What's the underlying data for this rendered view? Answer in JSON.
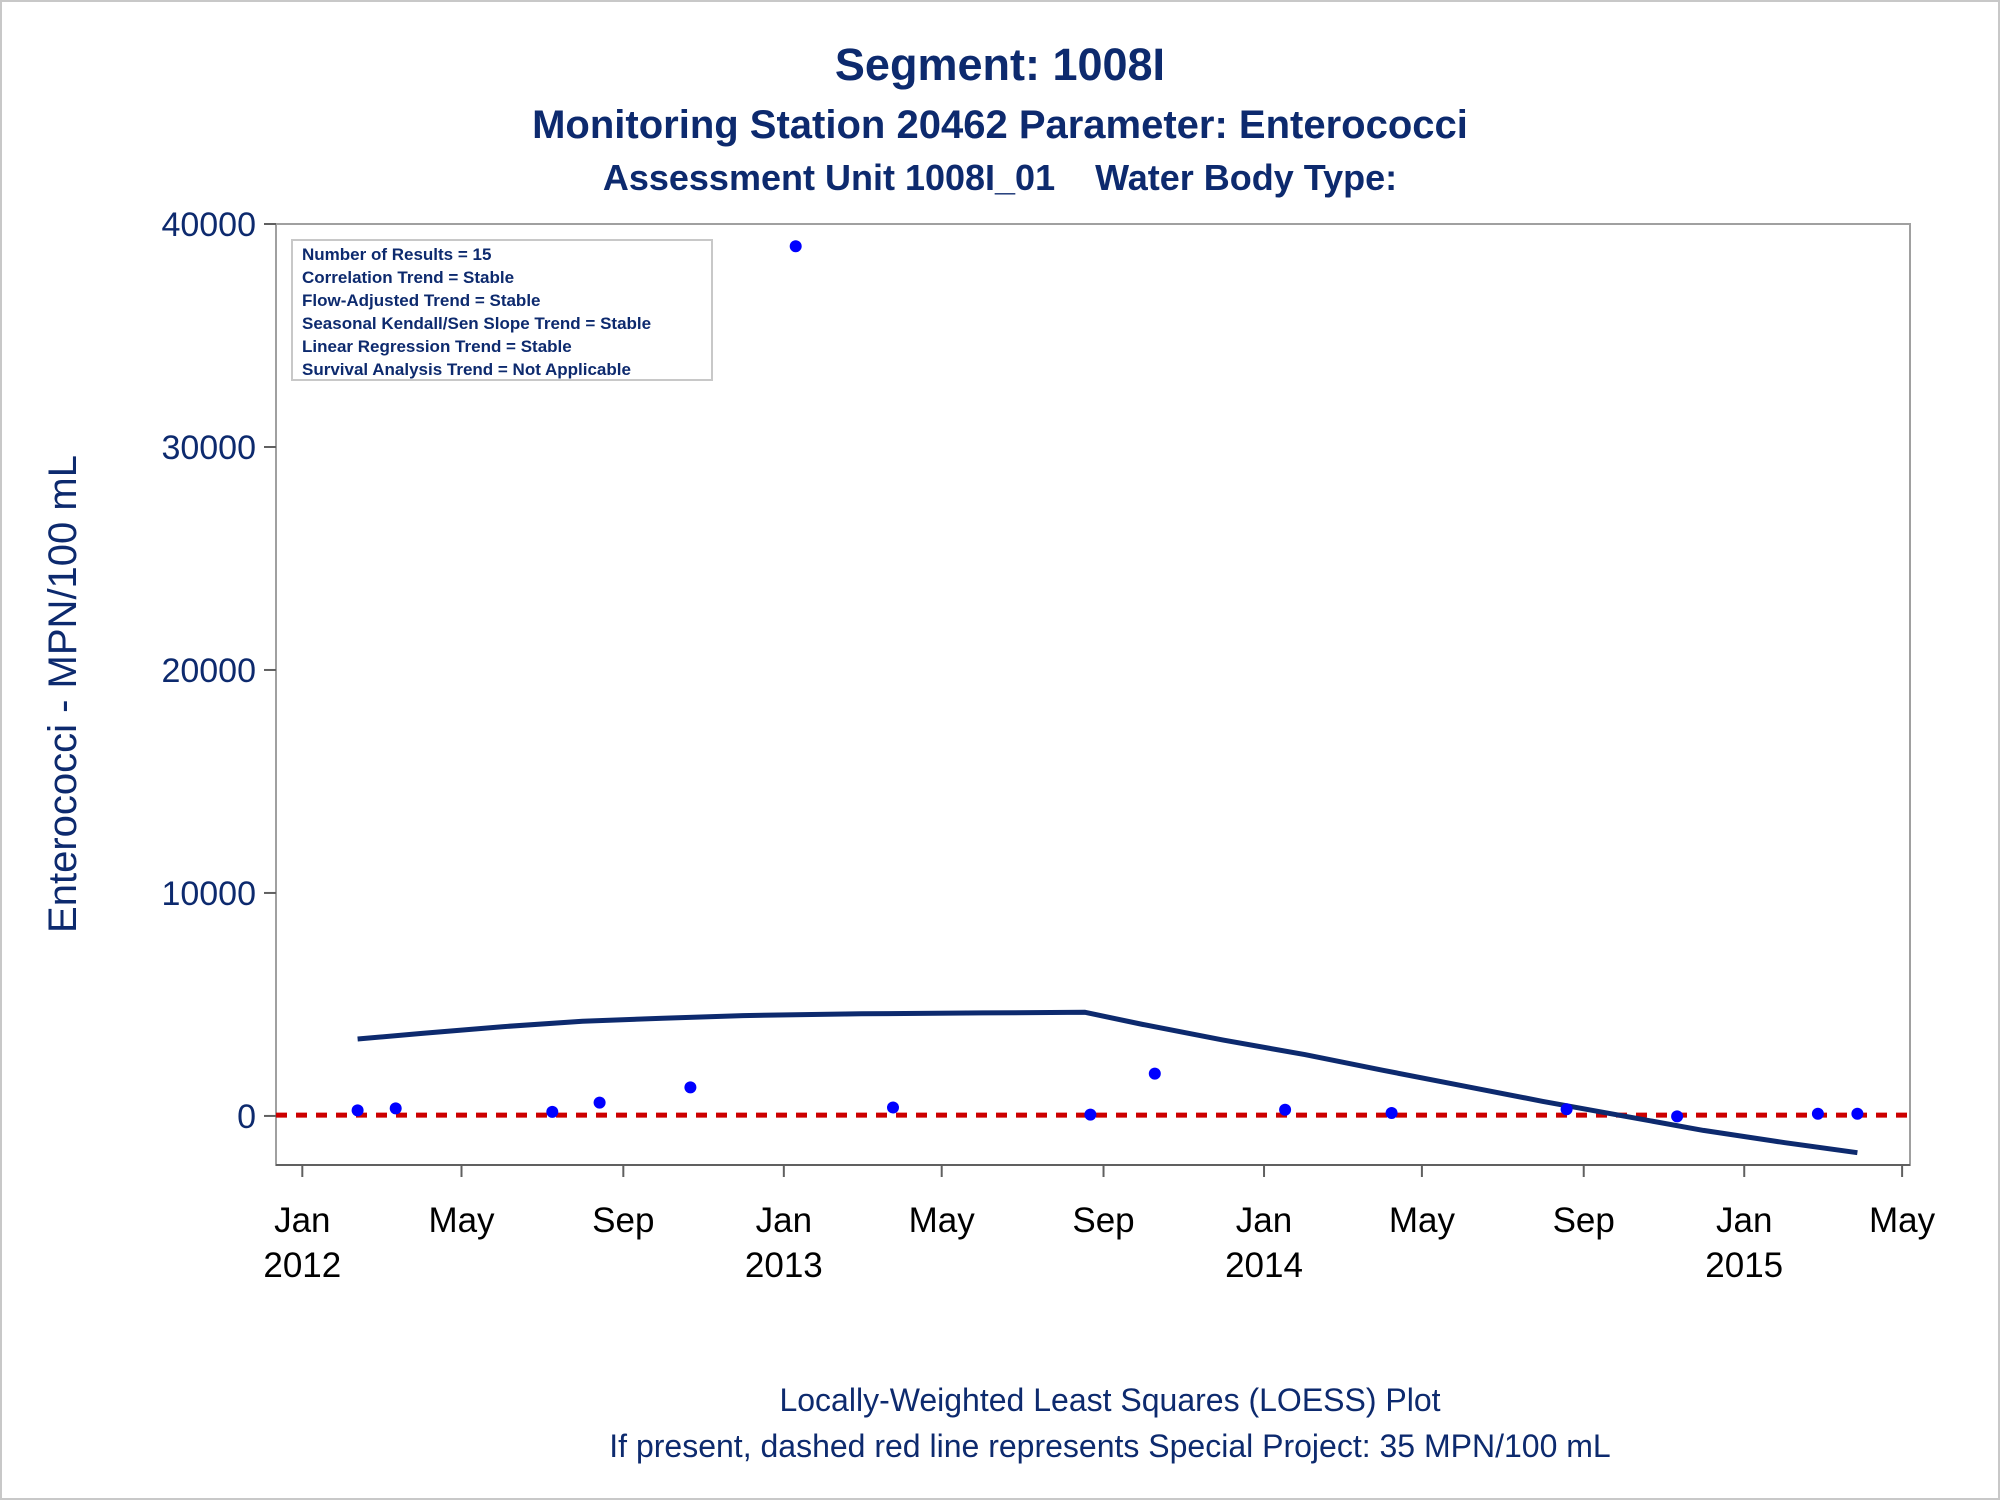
{
  "header": {
    "title": "Segment: 1008I",
    "subtitle": "Monitoring Station 20462 Parameter: Enterococci",
    "subtitle2": "Assessment Unit 1008I_01    Water Body Type:"
  },
  "stats_box": {
    "lines": [
      "Number of Results = 15",
      "Correlation Trend = Stable",
      "Flow-Adjusted Trend = Stable",
      "Seasonal Kendall/Sen Slope Trend = Stable",
      "Linear Regression Trend = Stable",
      "Survival Analysis Trend = Not Applicable"
    ]
  },
  "footer": {
    "line1": "Locally-Weighted Least Squares (LOESS) Plot",
    "line2": "If present, dashed red line represents Special Project: 35 MPN/100 mL"
  },
  "colors": {
    "text": "#0d2a6e",
    "points": "#0000ff",
    "loess": "#0d2a6e",
    "reference": "#cc0000",
    "frame": "#a0a0a0"
  },
  "chart_data": {
    "type": "scatter",
    "title": "Segment: 1008I",
    "ylabel": "Enterococci - MPN/100 mL",
    "xlabel": "",
    "ylim": [
      -2200,
      40000
    ],
    "xlim": [
      "2011-12-12",
      "2015-05-07"
    ],
    "grid": false,
    "yticks": [
      0,
      10000,
      20000,
      30000,
      40000
    ],
    "xticks": [
      {
        "date": "2012-01-01",
        "label": "Jan",
        "label2": "2012"
      },
      {
        "date": "2012-05-01",
        "label": "May",
        "label2": ""
      },
      {
        "date": "2012-09-01",
        "label": "Sep",
        "label2": ""
      },
      {
        "date": "2013-01-01",
        "label": "Jan",
        "label2": "2013"
      },
      {
        "date": "2013-05-01",
        "label": "May",
        "label2": ""
      },
      {
        "date": "2013-09-01",
        "label": "Sep",
        "label2": ""
      },
      {
        "date": "2014-01-01",
        "label": "Jan",
        "label2": "2014"
      },
      {
        "date": "2014-05-01",
        "label": "May",
        "label2": ""
      },
      {
        "date": "2014-09-01",
        "label": "Sep",
        "label2": ""
      },
      {
        "date": "2015-01-01",
        "label": "Jan",
        "label2": "2015"
      },
      {
        "date": "2015-05-01",
        "label": "May",
        "label2": ""
      }
    ],
    "points": [
      {
        "x": "2012-02-12",
        "y": 250
      },
      {
        "x": "2012-03-12",
        "y": 340
      },
      {
        "x": "2012-07-09",
        "y": 180
      },
      {
        "x": "2012-08-14",
        "y": 600
      },
      {
        "x": "2012-10-22",
        "y": 1280
      },
      {
        "x": "2013-01-10",
        "y": 39000
      },
      {
        "x": "2013-03-25",
        "y": 380
      },
      {
        "x": "2013-08-22",
        "y": 60
      },
      {
        "x": "2013-10-10",
        "y": 1900
      },
      {
        "x": "2014-01-17",
        "y": 280
      },
      {
        "x": "2014-04-08",
        "y": 130
      },
      {
        "x": "2014-08-19",
        "y": 300
      },
      {
        "x": "2014-11-11",
        "y": -20
      },
      {
        "x": "2015-02-26",
        "y": 100
      },
      {
        "x": "2015-03-28",
        "y": 100
      }
    ],
    "loess": [
      {
        "x": "2012-02-12",
        "y": 3450
      },
      {
        "x": "2012-04-01",
        "y": 3700
      },
      {
        "x": "2012-06-01",
        "y": 4000
      },
      {
        "x": "2012-08-01",
        "y": 4250
      },
      {
        "x": "2012-10-01",
        "y": 4380
      },
      {
        "x": "2012-12-01",
        "y": 4500
      },
      {
        "x": "2013-03-01",
        "y": 4580
      },
      {
        "x": "2013-06-01",
        "y": 4620
      },
      {
        "x": "2013-08-18",
        "y": 4650
      },
      {
        "x": "2013-10-01",
        "y": 4100
      },
      {
        "x": "2013-12-01",
        "y": 3400
      },
      {
        "x": "2014-02-01",
        "y": 2750
      },
      {
        "x": "2014-04-01",
        "y": 2050
      },
      {
        "x": "2014-06-01",
        "y": 1350
      },
      {
        "x": "2014-08-01",
        "y": 650
      },
      {
        "x": "2014-10-01",
        "y": 0
      },
      {
        "x": "2014-12-01",
        "y": -650
      },
      {
        "x": "2015-02-01",
        "y": -1200
      },
      {
        "x": "2015-03-28",
        "y": -1650
      }
    ],
    "reference_line": {
      "y": 35,
      "label": "Special Project: 35 MPN/100 mL"
    }
  }
}
